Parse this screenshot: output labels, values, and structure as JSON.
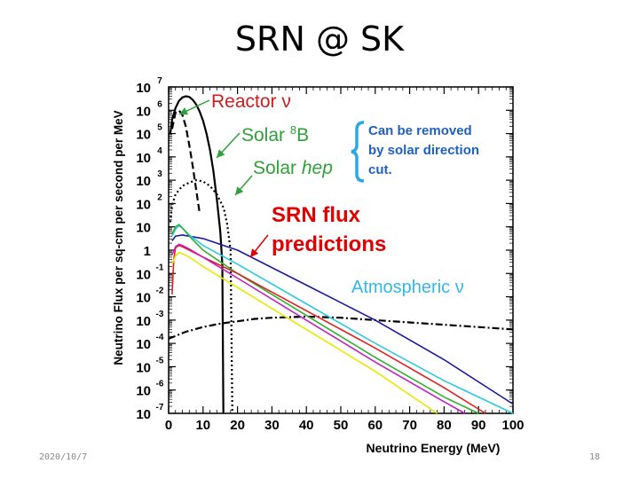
{
  "slide": {
    "title": "SRN @ SK",
    "date": "2020/10/7",
    "page": "18"
  },
  "colors": {
    "reactor_label": "#c81e1e",
    "solar_label": "#2fa03a",
    "bracket": "#2ca8e0",
    "remove_text": "#2060c0",
    "srn_text": "#e00000",
    "atm_label": "#30b8e8",
    "blue_line": "#1a1aa0",
    "cyan_line": "#30c8e0",
    "green_line": "#30b030",
    "red_line": "#e02020",
    "magenta_line": "#c020c0",
    "yellow_line": "#e8e800"
  },
  "chart_data": {
    "type": "line",
    "title": "",
    "xlabel": "Neutrino Energy (MeV)",
    "ylabel": "Neutrino Flux per sq-cm per second per MeV",
    "xlim": [
      0,
      100
    ],
    "ylim_log10": [
      -7,
      7
    ],
    "x_ticks": [
      "0",
      "10",
      "20",
      "30",
      "40",
      "50",
      "60",
      "70",
      "80",
      "90",
      "100"
    ],
    "y_ticks": [
      {
        "base": "10",
        "exp": "-7"
      },
      {
        "base": "10",
        "exp": "-6"
      },
      {
        "base": "10",
        "exp": "-5"
      },
      {
        "base": "10",
        "exp": "-4"
      },
      {
        "base": "10",
        "exp": "-3"
      },
      {
        "base": "10",
        "exp": "-2"
      },
      {
        "base": "10",
        "exp": "-1"
      },
      {
        "base": "1",
        "exp": ""
      },
      {
        "base": "10",
        "exp": ""
      },
      {
        "base": "10",
        "exp": "2"
      },
      {
        "base": "10",
        "exp": "3"
      },
      {
        "base": "10",
        "exp": "4"
      },
      {
        "base": "10",
        "exp": "5"
      },
      {
        "base": "10",
        "exp": "6"
      },
      {
        "base": "10",
        "exp": "7"
      }
    ],
    "annotations": {
      "reactor": "Reactor ν",
      "solar_8b_prefix": "Solar ",
      "solar_8b_sup": "8",
      "solar_8b_suffix": "B",
      "solar_hep_prefix": "Solar ",
      "solar_hep_italic": "hep",
      "remove_line1": "Can be removed",
      "remove_line2": "by solar direction",
      "remove_line3": "cut.",
      "srn_line1": "SRN flux",
      "srn_line2": "predictions",
      "atmospheric": "Atmospheric ν"
    },
    "series": [
      {
        "name": "Reactor ν",
        "style": "dashed",
        "color": "#000000",
        "points": [
          [
            1,
            5.2
          ],
          [
            2,
            5.9
          ],
          [
            3,
            6.0
          ],
          [
            4,
            5.8
          ],
          [
            5,
            5.3
          ],
          [
            6,
            4.5
          ],
          [
            7,
            3.6
          ],
          [
            8,
            2.6
          ],
          [
            9,
            1.6
          ]
        ]
      },
      {
        "name": "Solar 8B",
        "style": "solid",
        "color": "#000000",
        "points": [
          [
            0.5,
            5.0
          ],
          [
            1,
            5.6
          ],
          [
            2,
            6.1
          ],
          [
            3,
            6.4
          ],
          [
            4,
            6.55
          ],
          [
            5,
            6.6
          ],
          [
            6,
            6.57
          ],
          [
            7,
            6.45
          ],
          [
            8,
            6.25
          ],
          [
            9,
            5.95
          ],
          [
            10,
            5.55
          ],
          [
            11,
            5.0
          ],
          [
            12,
            4.3
          ],
          [
            13,
            3.4
          ],
          [
            14,
            2.2
          ],
          [
            15,
            0.8
          ],
          [
            15.6,
            -0.6
          ],
          [
            15.9,
            -7.0
          ]
        ]
      },
      {
        "name": "Solar hep",
        "style": "dotted",
        "color": "#000000",
        "points": [
          [
            0.5,
            1.2
          ],
          [
            1,
            1.9
          ],
          [
            2,
            2.4
          ],
          [
            4,
            2.75
          ],
          [
            6,
            2.9
          ],
          [
            8,
            3.0
          ],
          [
            10,
            2.95
          ],
          [
            12,
            2.75
          ],
          [
            14,
            2.4
          ],
          [
            16,
            1.8
          ],
          [
            17,
            1.1
          ],
          [
            18,
            0.0
          ],
          [
            18.5,
            -7.0
          ]
        ]
      },
      {
        "name": "Atmospheric ν",
        "style": "dashdot",
        "color": "#000000",
        "points": [
          [
            0,
            -3.8
          ],
          [
            5,
            -3.5
          ],
          [
            10,
            -3.3
          ],
          [
            15,
            -3.15
          ],
          [
            20,
            -3.05
          ],
          [
            25,
            -2.95
          ],
          [
            30,
            -2.9
          ],
          [
            40,
            -2.85
          ],
          [
            50,
            -2.9
          ],
          [
            60,
            -3.0
          ],
          [
            70,
            -3.1
          ],
          [
            80,
            -3.2
          ],
          [
            90,
            -3.3
          ],
          [
            100,
            -3.4
          ]
        ]
      },
      {
        "name": "SRN blue",
        "style": "solid",
        "color": "#1a1aa0",
        "points": [
          [
            1,
            0.4
          ],
          [
            2,
            0.6
          ],
          [
            4,
            0.65
          ],
          [
            10,
            0.5
          ],
          [
            20,
            0.0
          ],
          [
            40,
            -1.5
          ],
          [
            60,
            -3.0
          ],
          [
            80,
            -4.7
          ],
          [
            100,
            -6.6
          ]
        ]
      },
      {
        "name": "SRN cyan",
        "style": "solid",
        "color": "#30c8e0",
        "points": [
          [
            1,
            0.6
          ],
          [
            2,
            0.9
          ],
          [
            3,
            1.05
          ],
          [
            4,
            0.95
          ],
          [
            6,
            0.65
          ],
          [
            10,
            0.2
          ],
          [
            20,
            -0.6
          ],
          [
            40,
            -2.3
          ],
          [
            60,
            -4.0
          ],
          [
            80,
            -5.6
          ],
          [
            100,
            -7.0
          ]
        ]
      },
      {
        "name": "SRN green",
        "style": "solid",
        "color": "#30b030",
        "points": [
          [
            1,
            0.7
          ],
          [
            2,
            1.0
          ],
          [
            3,
            1.1
          ],
          [
            4,
            0.95
          ],
          [
            6,
            0.6
          ],
          [
            10,
            0.0
          ],
          [
            20,
            -1.0
          ],
          [
            40,
            -2.8
          ],
          [
            60,
            -4.6
          ],
          [
            80,
            -6.3
          ],
          [
            90,
            -7.0
          ]
        ]
      },
      {
        "name": "SRN red",
        "style": "solid",
        "color": "#e02020",
        "points": [
          [
            1,
            -1.9
          ],
          [
            1.5,
            -0.4
          ],
          [
            2,
            0.1
          ],
          [
            3,
            0.2
          ],
          [
            4,
            0.15
          ],
          [
            6,
            0.0
          ],
          [
            10,
            -0.3
          ],
          [
            20,
            -1.0
          ],
          [
            40,
            -2.6
          ],
          [
            60,
            -4.2
          ],
          [
            80,
            -5.9
          ],
          [
            92,
            -7.0
          ]
        ]
      },
      {
        "name": "SRN magenta",
        "style": "solid",
        "color": "#c020c0",
        "points": [
          [
            1,
            -0.2
          ],
          [
            2,
            0.15
          ],
          [
            3,
            0.25
          ],
          [
            4,
            0.2
          ],
          [
            6,
            0.05
          ],
          [
            10,
            -0.3
          ],
          [
            20,
            -1.2
          ],
          [
            40,
            -3.0
          ],
          [
            60,
            -4.8
          ],
          [
            80,
            -6.5
          ],
          [
            86,
            -7.0
          ]
        ]
      },
      {
        "name": "SRN yellow",
        "style": "solid",
        "color": "#e8e800",
        "points": [
          [
            1,
            -0.6
          ],
          [
            2,
            -0.25
          ],
          [
            3,
            -0.1
          ],
          [
            4,
            -0.15
          ],
          [
            6,
            -0.3
          ],
          [
            10,
            -0.7
          ],
          [
            20,
            -1.6
          ],
          [
            40,
            -3.4
          ],
          [
            60,
            -5.2
          ],
          [
            78,
            -7.0
          ]
        ]
      }
    ]
  }
}
